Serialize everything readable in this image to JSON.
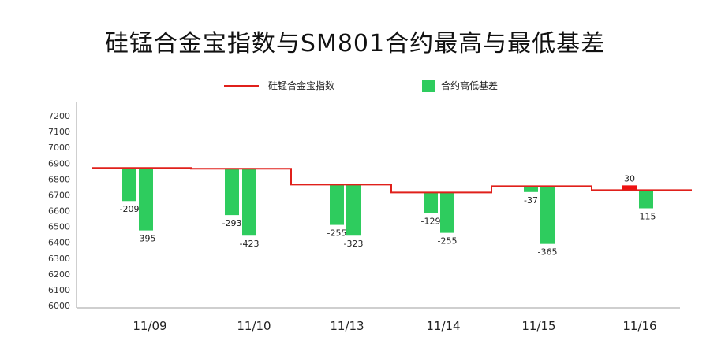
{
  "chart_data": {
    "type": "bar",
    "title": "硅锰合金宝指数与SM801合约最高与最低基差",
    "categories": [
      "11/09",
      "11/10",
      "11/13",
      "11/14",
      "11/15",
      "11/16"
    ],
    "ylim": [
      6000,
      7200
    ],
    "yticks": [
      6000,
      6100,
      6200,
      6300,
      6400,
      6500,
      6600,
      6700,
      6800,
      6900,
      7000,
      7100,
      7200
    ],
    "grid": false,
    "legend_placement": "top",
    "series": [
      {
        "name": "硅锰合金宝指数",
        "kind": "line",
        "color": "#e0201b",
        "values": [
          6870,
          6865,
          6765,
          6715,
          6755,
          6730
        ]
      },
      {
        "name": "合约高低基差",
        "kind": "bar",
        "color": "#2ecc5e",
        "negative_color": "#2ecc5e",
        "positive_color": "#ee1111",
        "highest_basis": [
          -209,
          -293,
          -255,
          -129,
          -37,
          30
        ],
        "lowest_basis": [
          -395,
          -423,
          -323,
          -255,
          -365,
          -115
        ],
        "highest_labels": [
          "-209",
          "-293",
          "-255",
          "-129",
          "-37",
          "30"
        ],
        "lowest_labels": [
          "-395",
          "-423",
          "-323",
          "-255",
          "-365",
          "-115"
        ]
      }
    ]
  }
}
